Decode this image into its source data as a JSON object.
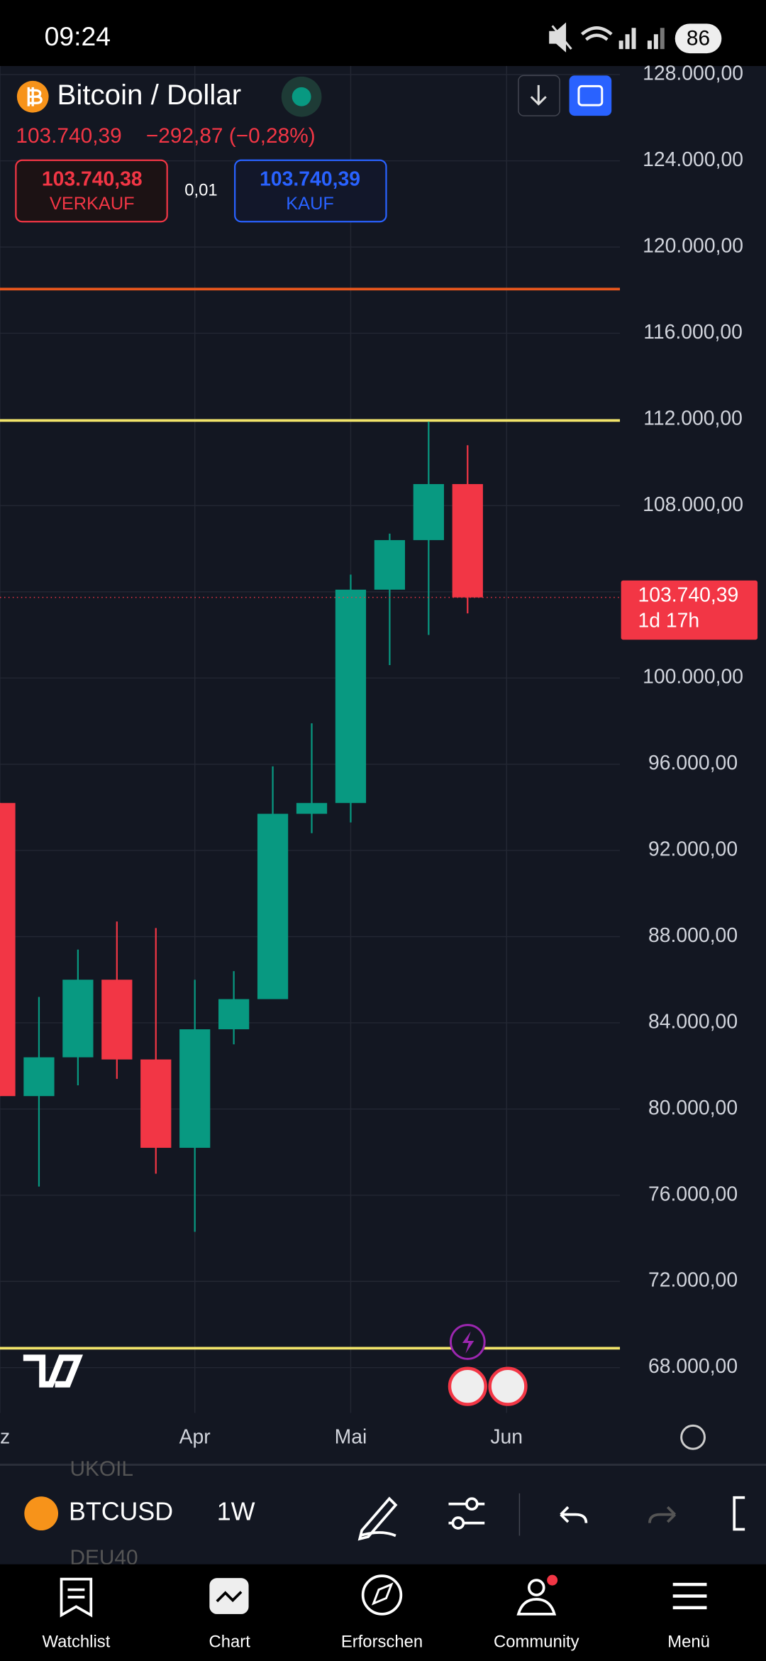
{
  "status_bar": {
    "time": "09:24",
    "battery": "86"
  },
  "header": {
    "title": "Bitcoin / Dollar",
    "price": "103.740,39",
    "change": "−292,87 (−0,28%)",
    "sell_price": "103.740,38",
    "sell_label": "VERKAUF",
    "spread": "0,01",
    "buy_price": "103.740,39",
    "buy_label": "KAUF"
  },
  "chart_data": {
    "type": "candlestick",
    "categories": [
      "z",
      null,
      null,
      null,
      null,
      "Apr",
      null,
      null,
      null,
      "Mai",
      null,
      null,
      null,
      "Jun"
    ],
    "open": [
      94200,
      80600,
      82400,
      86000,
      82300,
      78200,
      83700,
      85100,
      93700,
      94200,
      104100,
      106400,
      109000,
      null
    ],
    "high": [
      94200,
      85200,
      87400,
      88700,
      88400,
      86000,
      86400,
      95900,
      97900,
      104800,
      106700,
      111900,
      110800,
      null
    ],
    "low": [
      80600,
      76400,
      81100,
      81400,
      77000,
      74300,
      83000,
      85100,
      92800,
      93300,
      100600,
      102000,
      103000,
      null
    ],
    "close": [
      80600,
      82400,
      86000,
      82300,
      78200,
      83700,
      85100,
      93700,
      94200,
      104100,
      106400,
      109000,
      103740.39,
      null
    ],
    "up_color": "#089981",
    "down_color": "#f23645",
    "ylim": [
      65900,
      128400
    ],
    "yticks": [
      {
        "value": 68000,
        "label": "68.000,00"
      },
      {
        "value": 72000,
        "label": "72.000,00"
      },
      {
        "value": 76000,
        "label": "76.000,00"
      },
      {
        "value": 80000,
        "label": "80.000,00"
      },
      {
        "value": 84000,
        "label": "84.000,00"
      },
      {
        "value": 88000,
        "label": "88.000,00"
      },
      {
        "value": 92000,
        "label": "92.000,00"
      },
      {
        "value": 96000,
        "label": "96.000,00"
      },
      {
        "value": 100000,
        "label": "100.000,00"
      },
      {
        "value": 104000,
        "label": "104.000,00"
      },
      {
        "value": 108000,
        "label": "108.000,00"
      },
      {
        "value": 112000,
        "label": "112.000,00"
      },
      {
        "value": 116000,
        "label": "116.000,00"
      },
      {
        "value": 120000,
        "label": "120.000,00"
      },
      {
        "value": 124000,
        "label": "124.000,00"
      },
      {
        "value": 128000,
        "label": "128.000,00"
      }
    ],
    "grid": true,
    "levels": [
      {
        "value": 118050,
        "color": "#e8571e"
      },
      {
        "value": 111950,
        "color": "#f2e46a"
      },
      {
        "value": 68900,
        "color": "#f2e46a"
      }
    ],
    "price_label": {
      "value": 103740.39,
      "label": "103.740,39"
    },
    "countdown": "1d 17h"
  },
  "toolbar": {
    "symbol": "BTCUSD",
    "interval": "1W",
    "ghost_above": "UKOIL",
    "ghost_below": "DEU40"
  },
  "nav": {
    "items": [
      "Watchlist",
      "Chart",
      "Erforschen",
      "Community",
      "Menü"
    ]
  }
}
